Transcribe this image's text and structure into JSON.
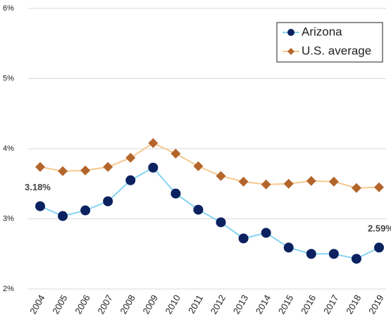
{
  "chart_data": {
    "type": "line",
    "categories": [
      "2004",
      "2005",
      "2006",
      "2007",
      "2008",
      "2009",
      "2010",
      "2011",
      "2012",
      "2013",
      "2014",
      "2015",
      "2016",
      "2017",
      "2018",
      "2019"
    ],
    "series": [
      {
        "name": "Arizona",
        "color": "#0b2160",
        "line_color": "#86d3f2",
        "marker": "circle",
        "values": [
          3.18,
          3.04,
          3.12,
          3.25,
          3.55,
          3.73,
          3.36,
          3.13,
          2.95,
          2.72,
          2.8,
          2.59,
          2.5,
          2.5,
          2.43,
          2.59
        ],
        "value_labels": [
          "3.18%",
          null,
          null,
          null,
          null,
          null,
          null,
          null,
          null,
          null,
          null,
          null,
          null,
          null,
          null,
          "2.59%"
        ]
      },
      {
        "name": "U.S. average",
        "color": "#b4652b",
        "line_color": "#f6c88f",
        "marker": "diamond",
        "values": [
          3.74,
          3.68,
          3.69,
          3.74,
          3.87,
          4.08,
          3.93,
          3.75,
          3.61,
          3.53,
          3.49,
          3.5,
          3.54,
          3.53,
          3.44,
          3.45
        ]
      }
    ],
    "ylim": [
      2,
      6
    ],
    "yticks": [
      {
        "value": 2,
        "label": "2%"
      },
      {
        "value": 3,
        "label": "3%"
      },
      {
        "value": 4,
        "label": "4%"
      },
      {
        "value": 5,
        "label": "5%"
      },
      {
        "value": 6,
        "label": "6%"
      }
    ],
    "grid": true,
    "legend": "upper right"
  }
}
